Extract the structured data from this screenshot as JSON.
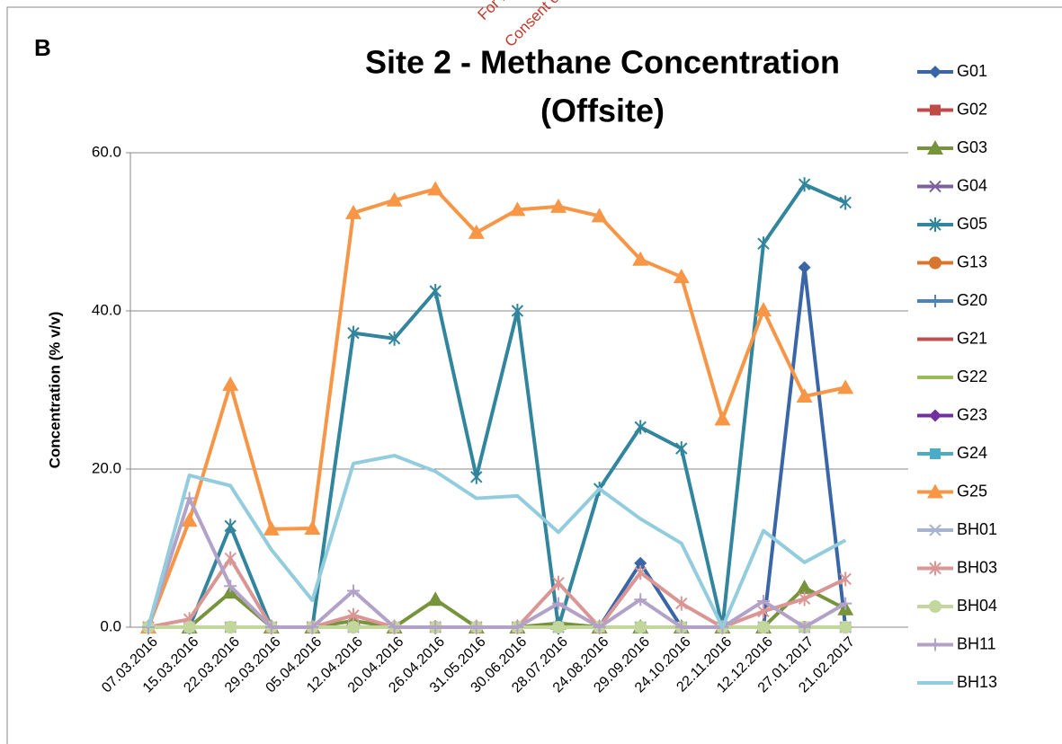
{
  "chart_data": {
    "type": "line",
    "panel_label": "B",
    "title": [
      "Site 2 - Methane Concentration",
      "(Offsite)"
    ],
    "watermark": [
      "For inspection",
      "Consent of copyright owner"
    ],
    "ylabel": "Concentration (% v/v)",
    "categories": [
      "07.03.2016",
      "15.03.2016",
      "22.03.2016",
      "29.03.2016",
      "05.04.2016",
      "12.04.2016",
      "20.04.2016",
      "26.04.2016",
      "31.05.2016",
      "30.06.2016",
      "28.07.2016",
      "24.08.2016",
      "29.09.2016",
      "24.10.2016",
      "22.11.2016",
      "12.12.2016",
      "27.01.2017",
      "21.02.2017"
    ],
    "ylim": [
      0,
      60
    ],
    "yticks": [
      {
        "value": 0,
        "label": "0.0"
      },
      {
        "value": 20,
        "label": "20.0"
      },
      {
        "value": 40,
        "label": "40.0"
      },
      {
        "value": 60,
        "label": "60.0"
      }
    ],
    "grid": true,
    "legend": "right",
    "series": [
      {
        "name": "G01",
        "color": "#3a66a8",
        "marker": "diamond",
        "values": [
          0,
          0,
          0,
          0,
          0,
          0,
          0,
          0,
          0,
          0,
          0,
          0,
          8.1,
          0,
          0,
          0,
          45.5,
          0
        ]
      },
      {
        "name": "G02",
        "color": "#be4b48",
        "marker": "square",
        "values": [
          0,
          0,
          0,
          0,
          0,
          0,
          0,
          0,
          0,
          0,
          0,
          0,
          0,
          0,
          0,
          0,
          0,
          0
        ]
      },
      {
        "name": "G03",
        "color": "#77933c",
        "marker": "triangle",
        "values": [
          0,
          0,
          4.4,
          0,
          0,
          0.8,
          0,
          3.5,
          0,
          0,
          0.5,
          0,
          0,
          0,
          0,
          0,
          5.0,
          2.3
        ]
      },
      {
        "name": "G04",
        "color": "#7d60a0",
        "marker": "x",
        "values": [
          0,
          0,
          0,
          0,
          0,
          0,
          0,
          0,
          0,
          0,
          0,
          0,
          0,
          0,
          0,
          0,
          0,
          0
        ]
      },
      {
        "name": "G05",
        "color": "#31859c",
        "marker": "star",
        "values": [
          0,
          0,
          12.8,
          0,
          0,
          37.2,
          36.5,
          42.5,
          19.0,
          40.0,
          0,
          17.5,
          25.3,
          22.6,
          0,
          48.5,
          56.0,
          53.7
        ]
      },
      {
        "name": "G13",
        "color": "#d6772d",
        "marker": "circle",
        "values": [
          0,
          0,
          0,
          0,
          0,
          0,
          0,
          0,
          0,
          0,
          0,
          0,
          0,
          0,
          0,
          0,
          0,
          0
        ]
      },
      {
        "name": "G20",
        "color": "#4f81bd",
        "marker": "plus",
        "values": [
          0,
          0,
          0,
          0,
          0,
          0,
          0,
          0,
          0,
          0,
          0,
          0,
          0,
          0,
          0,
          0,
          0,
          0
        ]
      },
      {
        "name": "G21",
        "color": "#c0504d",
        "marker": "none",
        "values": [
          0,
          0,
          0,
          0,
          0,
          0,
          0,
          0,
          0,
          0,
          0,
          0,
          0,
          0,
          0,
          0,
          0,
          0
        ]
      },
      {
        "name": "G22",
        "color": "#9bbb59",
        "marker": "none",
        "values": [
          0,
          0,
          0,
          0,
          0,
          0,
          0,
          0,
          0,
          0,
          0,
          0,
          0,
          0,
          0,
          0,
          0,
          0
        ]
      },
      {
        "name": "G23",
        "color": "#7030a0",
        "marker": "diamond",
        "values": [
          0,
          0,
          0,
          0,
          0,
          0,
          0,
          0,
          0,
          0,
          0,
          0,
          0,
          0,
          0,
          0,
          0,
          0
        ]
      },
      {
        "name": "G24",
        "color": "#4bacc6",
        "marker": "square",
        "values": [
          0,
          0,
          0,
          0,
          0,
          0,
          0,
          0,
          0,
          0,
          0,
          0,
          0,
          0,
          0,
          0,
          0,
          0
        ]
      },
      {
        "name": "G25",
        "color": "#f79646",
        "marker": "triangle",
        "values": [
          0,
          13.5,
          30.7,
          12.4,
          12.5,
          52.4,
          54.0,
          55.4,
          49.9,
          52.8,
          53.2,
          52.0,
          46.5,
          44.3,
          26.3,
          40.1,
          29.2,
          30.3
        ]
      },
      {
        "name": "BH01",
        "color": "#a6b3d1",
        "marker": "x",
        "values": [
          0,
          0,
          0,
          0,
          0,
          0,
          0,
          0,
          0,
          0,
          0,
          0,
          0,
          0,
          0,
          0,
          0,
          0
        ]
      },
      {
        "name": "BH03",
        "color": "#d99694",
        "marker": "star",
        "values": [
          0,
          1.0,
          8.7,
          0,
          0,
          1.5,
          0,
          0,
          0,
          0,
          5.6,
          0,
          6.9,
          3.0,
          0,
          2.0,
          3.6,
          6.1
        ]
      },
      {
        "name": "BH04",
        "color": "#c3d69b",
        "marker": "circle",
        "values": [
          0,
          0,
          0,
          0,
          0,
          0,
          0,
          0,
          0,
          0,
          0,
          0,
          0,
          0,
          0,
          0,
          0,
          0
        ]
      },
      {
        "name": "BH11",
        "color": "#b3a2c7",
        "marker": "plus",
        "values": [
          0,
          16.3,
          5.2,
          0,
          0,
          4.6,
          0,
          0,
          0,
          0,
          3.0,
          0,
          3.5,
          0,
          0,
          3.3,
          0,
          3.0
        ]
      },
      {
        "name": "BH13",
        "color": "#93cddd",
        "marker": "none",
        "values": [
          0,
          19.2,
          17.9,
          9.8,
          3.4,
          20.7,
          21.7,
          19.7,
          16.3,
          16.6,
          12.0,
          17.5,
          13.7,
          10.6,
          0,
          12.2,
          8.2,
          11.0
        ]
      }
    ]
  }
}
